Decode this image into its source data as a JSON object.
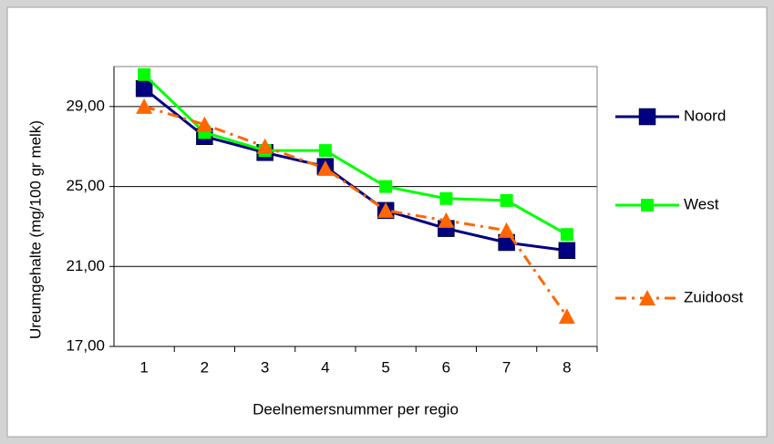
{
  "chart_data": {
    "type": "line",
    "y_label": "Ureumgehalte (mg/100 gr melk)",
    "x_label": "Deelnemersnummer per regio",
    "categories": [
      "1",
      "2",
      "3",
      "4",
      "5",
      "6",
      "7",
      "8"
    ],
    "series": [
      {
        "name": "Noord",
        "color": "#000080",
        "marker": "square",
        "dash": false,
        "values": [
          29.9,
          27.5,
          26.7,
          26.0,
          23.8,
          22.9,
          22.2,
          21.8
        ]
      },
      {
        "name": "West",
        "color": "#00ff00",
        "marker": "square-small",
        "dash": false,
        "values": [
          30.6,
          27.7,
          26.8,
          26.8,
          25.0,
          24.4,
          24.3,
          22.6
        ]
      },
      {
        "name": "Zuidoost",
        "color": "#ff6600",
        "marker": "triangle",
        "dash": true,
        "values": [
          29.0,
          28.1,
          27.0,
          25.9,
          23.8,
          23.3,
          22.8,
          18.5
        ]
      }
    ],
    "ylim": [
      17,
      31
    ],
    "yticks": [
      {
        "value": 17,
        "label": "17,00"
      },
      {
        "value": 21,
        "label": "21,00"
      },
      {
        "value": 25,
        "label": "25,00"
      },
      {
        "value": 29,
        "label": "29,00"
      }
    ],
    "grid": true,
    "legend": "right"
  }
}
